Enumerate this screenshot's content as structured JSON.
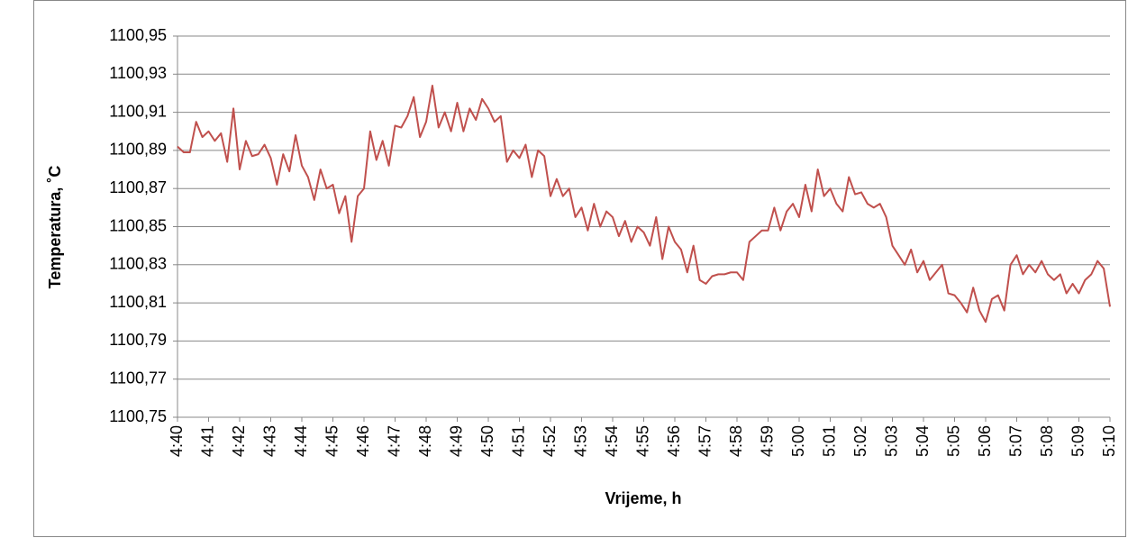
{
  "chart_data": {
    "type": "line",
    "xlabel": "Vrijeme, h",
    "ylabel": "Temperatura, ˚C",
    "categories": [
      "4:40",
      null,
      null,
      null,
      null,
      "4:41",
      null,
      null,
      null,
      null,
      "4:42",
      null,
      null,
      null,
      null,
      "4:43",
      null,
      null,
      null,
      null,
      "4:44",
      null,
      null,
      null,
      null,
      "4:45",
      null,
      null,
      null,
      null,
      "4:46",
      null,
      null,
      null,
      null,
      "4:47",
      null,
      null,
      null,
      null,
      "4:48",
      null,
      null,
      null,
      null,
      "4:49",
      null,
      null,
      null,
      null,
      "4:50",
      null,
      null,
      null,
      null,
      "4:51",
      null,
      null,
      null,
      null,
      "4:52",
      null,
      null,
      null,
      null,
      "4:53",
      null,
      null,
      null,
      null,
      "4:54",
      null,
      null,
      null,
      null,
      "4:55",
      null,
      null,
      null,
      null,
      "4:56",
      null,
      null,
      null,
      null,
      "4:57",
      null,
      null,
      null,
      null,
      "4:58",
      null,
      null,
      null,
      null,
      "4:59",
      null,
      null,
      null,
      null,
      "5:00",
      null,
      null,
      null,
      null,
      "5:01",
      null,
      null,
      null,
      null,
      "5:02",
      null,
      null,
      null,
      null,
      "5:03",
      null,
      null,
      null,
      null,
      "5:04",
      null,
      null,
      null,
      null,
      "5:05",
      null,
      null,
      null,
      null,
      "5:06",
      null,
      null,
      null,
      null,
      "5:07",
      null,
      null,
      null,
      null,
      "5:08",
      null,
      null,
      null,
      null,
      "5:09",
      null,
      null,
      null,
      null,
      "5:10"
    ],
    "values": [
      1100.892,
      1100.889,
      1100.889,
      1100.905,
      1100.897,
      1100.9,
      1100.895,
      1100.899,
      1100.884,
      1100.912,
      1100.88,
      1100.895,
      1100.887,
      1100.888,
      1100.893,
      1100.886,
      1100.872,
      1100.888,
      1100.879,
      1100.898,
      1100.882,
      1100.876,
      1100.864,
      1100.88,
      1100.87,
      1100.872,
      1100.857,
      1100.866,
      1100.842,
      1100.866,
      1100.87,
      1100.9,
      1100.885,
      1100.895,
      1100.882,
      1100.903,
      1100.902,
      1100.908,
      1100.918,
      1100.897,
      1100.905,
      1100.924,
      1100.902,
      1100.91,
      1100.9,
      1100.915,
      1100.9,
      1100.912,
      1100.906,
      1100.917,
      1100.912,
      1100.905,
      1100.908,
      1100.884,
      1100.89,
      1100.886,
      1100.893,
      1100.876,
      1100.89,
      1100.887,
      1100.866,
      1100.875,
      1100.866,
      1100.87,
      1100.855,
      1100.86,
      1100.848,
      1100.862,
      1100.85,
      1100.858,
      1100.855,
      1100.845,
      1100.853,
      1100.842,
      1100.85,
      1100.847,
      1100.84,
      1100.855,
      1100.833,
      1100.85,
      1100.842,
      1100.838,
      1100.826,
      1100.84,
      1100.822,
      1100.82,
      1100.824,
      1100.825,
      1100.825,
      1100.826,
      1100.826,
      1100.822,
      1100.842,
      1100.845,
      1100.848,
      1100.848,
      1100.86,
      1100.848,
      1100.858,
      1100.862,
      1100.855,
      1100.872,
      1100.858,
      1100.88,
      1100.866,
      1100.87,
      1100.862,
      1100.858,
      1100.876,
      1100.867,
      1100.868,
      1100.862,
      1100.86,
      1100.862,
      1100.855,
      1100.84,
      1100.835,
      1100.83,
      1100.838,
      1100.826,
      1100.832,
      1100.822,
      1100.826,
      1100.83,
      1100.815,
      1100.814,
      1100.81,
      1100.805,
      1100.818,
      1100.806,
      1100.8,
      1100.812,
      1100.814,
      1100.806,
      1100.83,
      1100.835,
      1100.825,
      1100.83,
      1100.826,
      1100.832,
      1100.825,
      1100.822,
      1100.825,
      1100.815,
      1100.82,
      1100.815,
      1100.822,
      1100.825,
      1100.832,
      1100.828,
      1100.808
    ],
    "color": "#c0504d",
    "ylim": [
      1100.75,
      1100.95
    ],
    "yticks": [
      {
        "value": 1100.75,
        "label": "1100,75"
      },
      {
        "value": 1100.77,
        "label": "1100,77"
      },
      {
        "value": 1100.79,
        "label": "1100,79"
      },
      {
        "value": 1100.81,
        "label": "1100,81"
      },
      {
        "value": 1100.83,
        "label": "1100,83"
      },
      {
        "value": 1100.85,
        "label": "1100,85"
      },
      {
        "value": 1100.87,
        "label": "1100,87"
      },
      {
        "value": 1100.89,
        "label": "1100,89"
      },
      {
        "value": 1100.91,
        "label": "1100,91"
      },
      {
        "value": 1100.93,
        "label": "1100,93"
      },
      {
        "value": 1100.95,
        "label": "1100,95"
      }
    ],
    "grid": true
  }
}
